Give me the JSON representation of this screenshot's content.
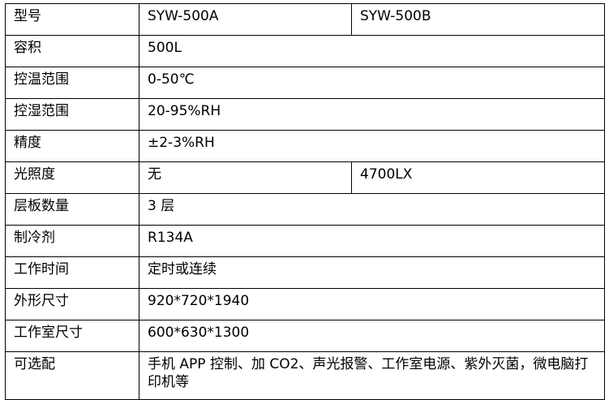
{
  "table": {
    "rows": [
      {
        "label": "型号",
        "values": [
          "SYW-500A",
          "SYW-500B"
        ]
      },
      {
        "label": "容积",
        "values": [
          "500L"
        ]
      },
      {
        "label": "控温范围",
        "values": [
          "0-50℃"
        ]
      },
      {
        "label": "控湿范围",
        "values": [
          "20-95%RH"
        ]
      },
      {
        "label": "精度",
        "values": [
          "±2-3%RH"
        ]
      },
      {
        "label": "光照度",
        "values": [
          "无",
          "4700LX"
        ]
      },
      {
        "label": "层板数量",
        "values": [
          "3 层"
        ]
      },
      {
        "label": "制冷剂",
        "values": [
          "R134A"
        ]
      },
      {
        "label": "工作时间",
        "values": [
          "定时或连续"
        ]
      },
      {
        "label": "外形尺寸",
        "values": [
          "920*720*1940"
        ]
      },
      {
        "label": "工作室尺寸",
        "values": [
          "600*630*1300"
        ]
      },
      {
        "label": "可选配",
        "values": [
          "手机 APP 控制、加 CO2、声光报警、工作室电源、紫外灭菌，微电脑打印机等"
        ]
      }
    ]
  }
}
